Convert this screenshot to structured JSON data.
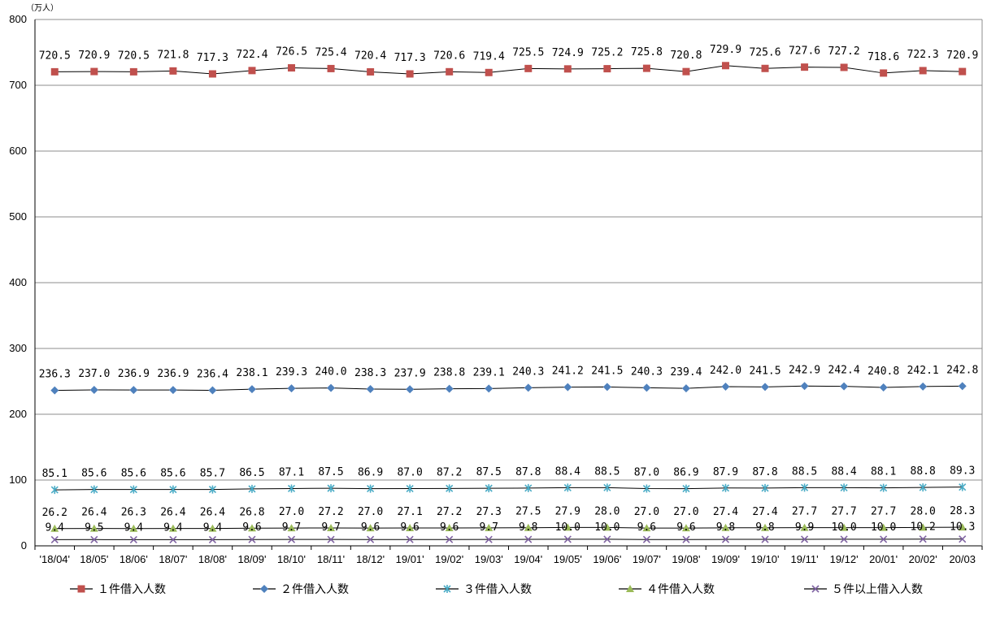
{
  "chart_data": {
    "type": "line",
    "unit_label": "（万人）",
    "categories": [
      "'18/04",
      "18/05",
      "18/06",
      "18/07",
      "18/08",
      "18/09",
      "18/10",
      "18/11",
      "18/12",
      "19/01",
      "19/02",
      "19/03",
      "19/04",
      "19/05",
      "19/06",
      "19/07",
      "19/08",
      "19/09",
      "19/10",
      "19/11",
      "19/12",
      "20/01",
      "20/02",
      "20/03"
    ],
    "category_separator": "'",
    "ylim": [
      0,
      800
    ],
    "yticks": [
      0,
      100,
      200,
      300,
      400,
      500,
      600,
      700,
      800
    ],
    "grid": true,
    "legend_position": "bottom",
    "series": [
      {
        "name": "１件借入人数",
        "color": "#c0504d",
        "marker": "square",
        "values": [
          720.5,
          720.9,
          720.5,
          721.8,
          717.3,
          722.4,
          726.5,
          725.4,
          720.4,
          717.3,
          720.6,
          719.4,
          725.5,
          724.9,
          725.2,
          725.8,
          720.8,
          729.9,
          725.6,
          727.6,
          727.2,
          718.6,
          722.3,
          720.9
        ],
        "labels": [
          "720.5",
          "720.9",
          "720.5",
          "721.8",
          "717.3",
          "722.4",
          "726.5",
          "725.4",
          "720.4",
          "717.3",
          "720.6",
          "719.4",
          "725.5",
          "724.9",
          "725.2",
          "725.8",
          "720.8",
          "729.9",
          "725.6",
          "727.6",
          "727.2",
          "718.6",
          "722.3",
          "720.9"
        ]
      },
      {
        "name": "２件借入人数",
        "color": "#4f81bd",
        "marker": "diamond",
        "values": [
          236.3,
          237.0,
          236.9,
          236.9,
          236.4,
          238.1,
          239.3,
          240.0,
          238.3,
          237.9,
          238.8,
          239.1,
          240.3,
          241.2,
          241.5,
          240.3,
          239.4,
          242.0,
          241.5,
          242.9,
          242.4,
          240.8,
          242.1,
          242.8
        ],
        "labels": [
          "236.3",
          "237.0",
          "236.9",
          "236.9",
          "236.4",
          "238.1",
          "239.3",
          "240.0",
          "238.3",
          "237.9",
          "238.8",
          "239.1",
          "240.3",
          "241.2",
          "241.5",
          "240.3",
          "239.4",
          "242.0",
          "241.5",
          "242.9",
          "242.4",
          "240.8",
          "242.1",
          "242.8"
        ]
      },
      {
        "name": "３件借入人数",
        "color": "#4bacc6",
        "marker": "asterisk",
        "values": [
          85.1,
          85.6,
          85.6,
          85.6,
          85.7,
          86.5,
          87.1,
          87.5,
          86.9,
          87.0,
          87.2,
          87.5,
          87.8,
          88.4,
          88.5,
          87.0,
          86.9,
          87.9,
          87.8,
          88.5,
          88.4,
          88.1,
          88.8,
          89.3
        ],
        "labels": [
          "85.1",
          "85.6",
          "85.6",
          "85.6",
          "85.7",
          "86.5",
          "87.1",
          "87.5",
          "86.9",
          "87.0",
          "87.2",
          "87.5",
          "87.8",
          "88.4",
          "88.5",
          "87.0",
          "86.9",
          "87.9",
          "87.8",
          "88.5",
          "88.4",
          "88.1",
          "88.8",
          "89.3"
        ]
      },
      {
        "name": "４件借入人数",
        "color": "#9bbb59",
        "marker": "triangle",
        "values": [
          26.2,
          26.4,
          26.3,
          26.4,
          26.4,
          26.8,
          27.0,
          27.2,
          27.0,
          27.1,
          27.2,
          27.3,
          27.5,
          27.9,
          28.0,
          27.0,
          27.0,
          27.4,
          27.4,
          27.7,
          27.7,
          27.7,
          28.0,
          28.3
        ],
        "labels": [
          "26.2",
          "26.4",
          "26.3",
          "26.4",
          "26.4",
          "26.8",
          "27.0",
          "27.2",
          "27.0",
          "27.1",
          "27.2",
          "27.3",
          "27.5",
          "27.9",
          "28.0",
          "27.0",
          "27.0",
          "27.4",
          "27.4",
          "27.7",
          "27.7",
          "27.7",
          "28.0",
          "28.3"
        ]
      },
      {
        "name": "５件以上借入人数",
        "color": "#8064a2",
        "marker": "x",
        "values": [
          9.4,
          9.5,
          9.4,
          9.4,
          9.4,
          9.6,
          9.7,
          9.7,
          9.6,
          9.6,
          9.6,
          9.7,
          9.8,
          10.0,
          10.0,
          9.6,
          9.6,
          9.8,
          9.8,
          9.9,
          10.0,
          10.0,
          10.2,
          10.3
        ],
        "labels": [
          "9.4",
          "9.5",
          "9.4",
          "9.4",
          "9.4",
          "9.6",
          "9.7",
          "9.7",
          "9.6",
          "9.6",
          "9.6",
          "9.7",
          "9.8",
          "10.0",
          "10.0",
          "9.6",
          "9.6",
          "9.8",
          "9.8",
          "9.9",
          "10.0",
          "10.0",
          "10.2",
          "10.3"
        ]
      }
    ]
  }
}
